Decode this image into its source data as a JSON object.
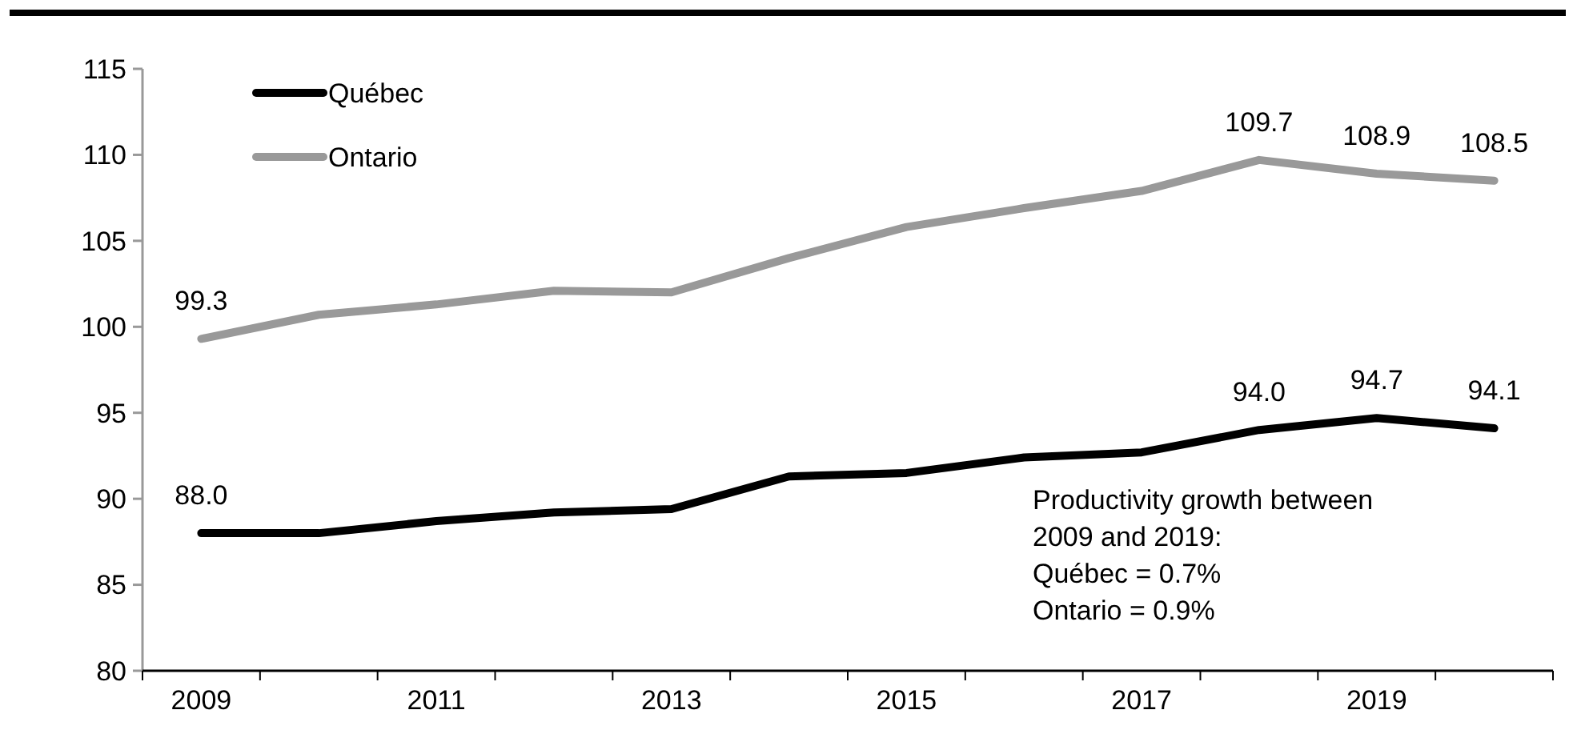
{
  "chart_data": {
    "type": "line",
    "categories": [
      "2009",
      null,
      "2011",
      null,
      "2013",
      null,
      "2015",
      null,
      "2017",
      null,
      "2019",
      null
    ],
    "series": [
      {
        "name": "Québec",
        "color": "#000000",
        "values": [
          88.0,
          88.0,
          88.7,
          89.2,
          89.4,
          91.3,
          91.5,
          92.4,
          92.7,
          94.0,
          94.7,
          94.1
        ],
        "value_labels": [
          "88.0",
          null,
          null,
          null,
          null,
          null,
          null,
          null,
          null,
          "94.0",
          "94.7",
          "94.1"
        ]
      },
      {
        "name": "Ontario",
        "color": "#999999",
        "values": [
          99.3,
          100.7,
          101.3,
          102.1,
          102.0,
          104.0,
          105.8,
          106.9,
          107.9,
          109.7,
          108.9,
          108.5
        ],
        "value_labels": [
          "99.3",
          null,
          null,
          null,
          null,
          null,
          null,
          null,
          null,
          "109.7",
          "108.9",
          "108.5"
        ]
      }
    ],
    "ylim": [
      80,
      115
    ],
    "yticks": [
      80,
      85,
      90,
      95,
      100,
      105,
      110,
      115
    ],
    "grid": false,
    "legend": "top left",
    "marker": "none",
    "line_style": "solid",
    "annotations": [
      {
        "text": "Productivity growth between\n2009 and 2019:\nQuébec = 0.7%\nOntario = 0.9%"
      }
    ]
  }
}
